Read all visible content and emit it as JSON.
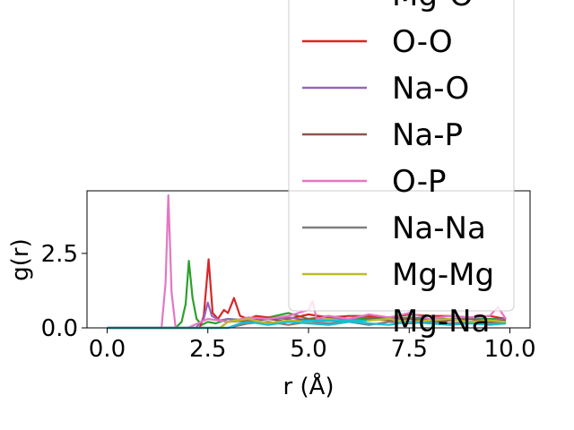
{
  "chart_data": {
    "type": "line",
    "xlabel": "r (Å)",
    "ylabel": "g(r)",
    "xlim": [
      -0.5,
      10.5
    ],
    "ylim": [
      0,
      4.6
    ],
    "x_ticks": [
      {
        "value": 0.0,
        "label": "0.0"
      },
      {
        "value": 2.5,
        "label": "2.5"
      },
      {
        "value": 5.0,
        "label": "5.0"
      },
      {
        "value": 7.5,
        "label": "7.5"
      },
      {
        "value": 10.0,
        "label": "10.0"
      }
    ],
    "y_ticks": [
      {
        "value": 0.0,
        "label": "0.0"
      },
      {
        "value": 2.5,
        "label": "2.5"
      }
    ],
    "legend_position": "upper-right",
    "series": [
      {
        "name": "Mg-O",
        "color": "#2ca02c",
        "x": [
          0.0,
          1.0,
          1.7,
          1.85,
          1.95,
          2.03,
          2.12,
          2.22,
          2.35,
          2.5,
          2.7,
          3.0,
          3.5,
          4.0,
          4.5,
          5.0,
          5.5,
          6.0,
          6.5,
          7.0,
          7.5,
          8.0,
          8.5,
          9.0,
          9.5,
          9.9
        ],
        "y": [
          0.0,
          0.0,
          0.0,
          0.2,
          0.8,
          2.25,
          1.0,
          0.3,
          0.1,
          0.2,
          0.15,
          0.3,
          0.25,
          0.35,
          0.5,
          0.3,
          0.4,
          0.3,
          0.35,
          0.3,
          0.35,
          0.3,
          0.3,
          0.3,
          0.3,
          0.3
        ]
      },
      {
        "name": "O-O",
        "color": "#d62728",
        "x": [
          0.0,
          2.0,
          2.3,
          2.4,
          2.52,
          2.62,
          2.75,
          2.9,
          3.0,
          3.15,
          3.3,
          3.5,
          3.7,
          4.0,
          4.5,
          5.0,
          5.5,
          6.0,
          6.5,
          7.0,
          7.5,
          8.0,
          8.5,
          9.0,
          9.5,
          9.9
        ],
        "y": [
          0.0,
          0.0,
          0.0,
          0.4,
          2.3,
          0.5,
          0.3,
          0.6,
          0.5,
          1.0,
          0.4,
          0.3,
          0.4,
          0.35,
          0.3,
          0.45,
          0.35,
          0.4,
          0.4,
          0.35,
          0.45,
          0.4,
          0.4,
          0.35,
          0.4,
          0.3
        ]
      },
      {
        "name": "Na-O",
        "color": "#9467bd",
        "x": [
          0.0,
          2.2,
          2.4,
          2.5,
          2.6,
          2.8,
          3.0,
          3.5,
          4.0,
          4.5,
          5.0,
          5.5,
          6.0,
          6.5,
          7.0,
          7.5,
          8.0,
          8.5,
          9.0,
          9.5,
          9.9
        ],
        "y": [
          0.0,
          0.0,
          0.3,
          0.85,
          0.4,
          0.25,
          0.3,
          0.2,
          0.3,
          0.35,
          0.25,
          0.3,
          0.3,
          0.25,
          0.3,
          0.3,
          0.25,
          0.3,
          0.3,
          0.25,
          0.3
        ]
      },
      {
        "name": "Na-P",
        "color": "#8c564b",
        "x": [
          0.0,
          2.8,
          3.0,
          3.5,
          4.0,
          4.5,
          5.0,
          5.5,
          6.0,
          6.5,
          7.0,
          7.5,
          8.0,
          8.5,
          9.0,
          9.5,
          9.9
        ],
        "y": [
          0.0,
          0.0,
          0.2,
          0.25,
          0.3,
          0.2,
          0.3,
          0.25,
          0.2,
          0.3,
          0.25,
          0.3,
          0.2,
          0.25,
          0.3,
          0.2,
          0.25
        ]
      },
      {
        "name": "O-P",
        "color": "#e377c2",
        "x": [
          0.0,
          1.35,
          1.45,
          1.52,
          1.6,
          1.7,
          2.0,
          2.5,
          3.0,
          3.5,
          4.0,
          4.5,
          5.0,
          5.1,
          5.2,
          5.5,
          6.0,
          6.5,
          7.0,
          7.5,
          8.0,
          8.5,
          9.0,
          9.5,
          9.7,
          9.9
        ],
        "y": [
          0.0,
          0.0,
          1.5,
          4.45,
          1.2,
          0.0,
          0.0,
          0.3,
          0.2,
          0.35,
          0.3,
          0.4,
          0.6,
          0.9,
          0.3,
          0.4,
          0.3,
          0.45,
          0.35,
          0.5,
          0.3,
          0.4,
          0.35,
          0.4,
          0.7,
          0.3
        ]
      },
      {
        "name": "Na-Na",
        "color": "#7f7f7f",
        "x": [
          0.0,
          3.0,
          3.5,
          4.0,
          4.5,
          5.0,
          5.5,
          6.0,
          6.5,
          7.0,
          7.5,
          8.0,
          8.5,
          9.0,
          9.5,
          9.9
        ],
        "y": [
          0.0,
          0.0,
          0.15,
          0.2,
          0.1,
          0.2,
          0.15,
          0.2,
          0.1,
          0.2,
          0.15,
          0.2,
          0.15,
          0.2,
          0.15,
          0.2
        ]
      },
      {
        "name": "Mg-Mg",
        "color": "#bcbd22",
        "x": [
          0.0,
          2.8,
          3.0,
          3.5,
          4.0,
          4.5,
          5.0,
          5.5,
          6.0,
          6.5,
          7.0,
          7.5,
          8.0,
          8.5,
          9.0,
          9.5,
          9.9
        ],
        "y": [
          0.0,
          0.0,
          0.2,
          0.3,
          0.15,
          0.25,
          0.2,
          0.3,
          0.2,
          0.25,
          0.3,
          0.2,
          0.25,
          0.3,
          0.2,
          0.25,
          0.2
        ]
      },
      {
        "name": "Mg-Na",
        "color": "#17becf",
        "x": [
          0.0,
          3.0,
          3.3,
          3.5,
          4.0,
          4.5,
          5.0,
          5.5,
          6.0,
          6.5,
          7.0,
          7.5,
          8.0,
          8.5,
          9.0,
          9.5,
          9.9
        ],
        "y": [
          0.0,
          0.0,
          0.15,
          0.2,
          0.1,
          0.2,
          0.15,
          0.1,
          0.2,
          0.15,
          0.1,
          0.2,
          0.15,
          0.1,
          0.15,
          0.1,
          0.15
        ]
      }
    ]
  }
}
